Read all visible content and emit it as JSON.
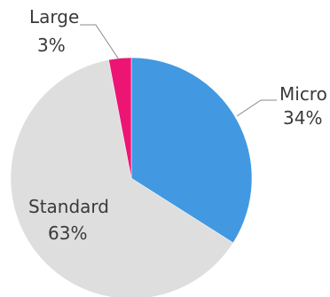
{
  "chart_data": {
    "type": "pie",
    "slices": [
      {
        "label": "Micro",
        "value": 34,
        "value_label": "34%",
        "color": "#4299e1"
      },
      {
        "label": "Standard",
        "value": 63,
        "value_label": "63%",
        "color": "#dedede"
      },
      {
        "label": "Large",
        "value": 3,
        "value_label": "3%",
        "color": "#ec1574"
      }
    ]
  }
}
